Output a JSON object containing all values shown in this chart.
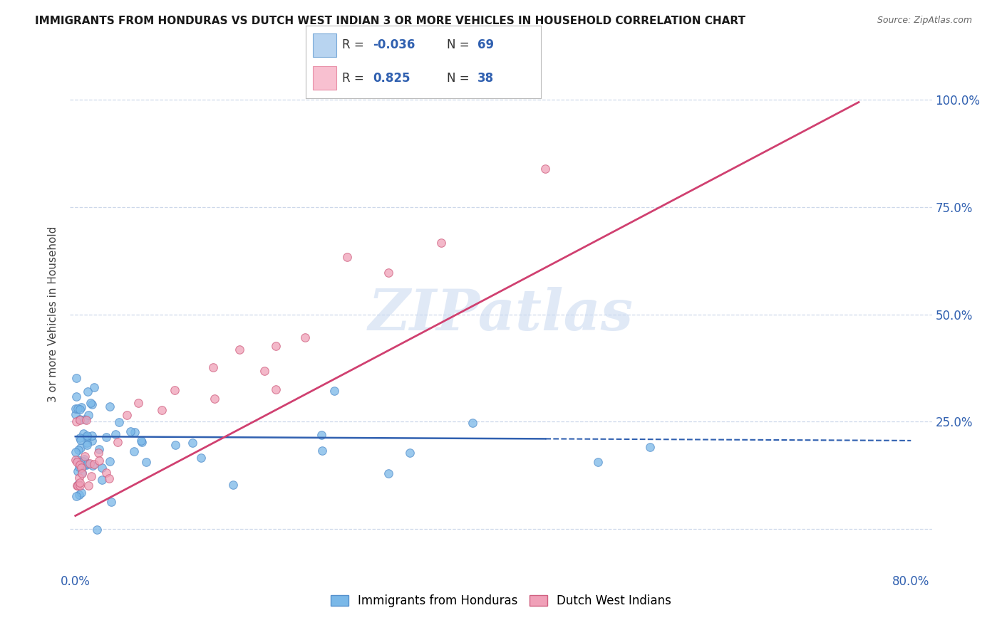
{
  "title": "IMMIGRANTS FROM HONDURAS VS DUTCH WEST INDIAN 3 OR MORE VEHICLES IN HOUSEHOLD CORRELATION CHART",
  "source": "Source: ZipAtlas.com",
  "ylabel": "3 or more Vehicles in Household",
  "background_color": "#ffffff",
  "grid_color": "#c8d4e8",
  "blue_dot_color": "#7ab8e8",
  "blue_dot_edge": "#5590cc",
  "pink_dot_color": "#f0a0b8",
  "pink_dot_edge": "#d06080",
  "line_blue_color": "#3060b0",
  "line_pink_color": "#d04070",
  "dot_size": 70,
  "legend_box_blue": "#b8d4f0",
  "legend_box_blue_edge": "#7aaad8",
  "legend_box_pink": "#f8c0d0",
  "legend_box_pink_edge": "#e890a8",
  "r_value_color": "#3060b0",
  "watermark_color": "#c8d8f0"
}
